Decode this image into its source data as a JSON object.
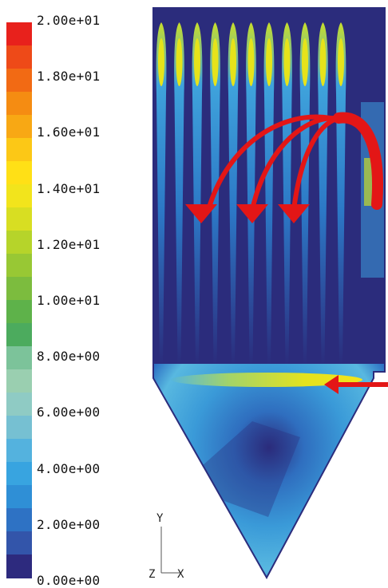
{
  "colorbar": {
    "ticks": [
      "2.00e+01",
      "1.80e+01",
      "1.60e+01",
      "1.40e+01",
      "1.20e+01",
      "1.00e+01",
      "8.00e+00",
      "6.00e+00",
      "4.00e+00",
      "2.00e+00",
      "0.00e+00"
    ],
    "colors": [
      "#e8211c",
      "#ee4a18",
      "#f26a14",
      "#f58c12",
      "#f8a814",
      "#fcc816",
      "#ffe016",
      "#f2e41c",
      "#d8de22",
      "#b6d42a",
      "#98c834",
      "#7cbc3e",
      "#5eb24a",
      "#4cab5e",
      "#7cc39a",
      "#9acfb0",
      "#8fcbc4",
      "#76c0d2",
      "#54b2de",
      "#38a4e0",
      "#2f8fd6",
      "#2e72c4",
      "#3355aa",
      "#2d2a7e"
    ],
    "min": 0,
    "max": 20
  },
  "axes": {
    "y_label": "Y",
    "z_label": "Z",
    "x_label": "X"
  },
  "colors": {
    "flow_arrow": "#e31616",
    "domain_dark": "#2b2c7c"
  }
}
